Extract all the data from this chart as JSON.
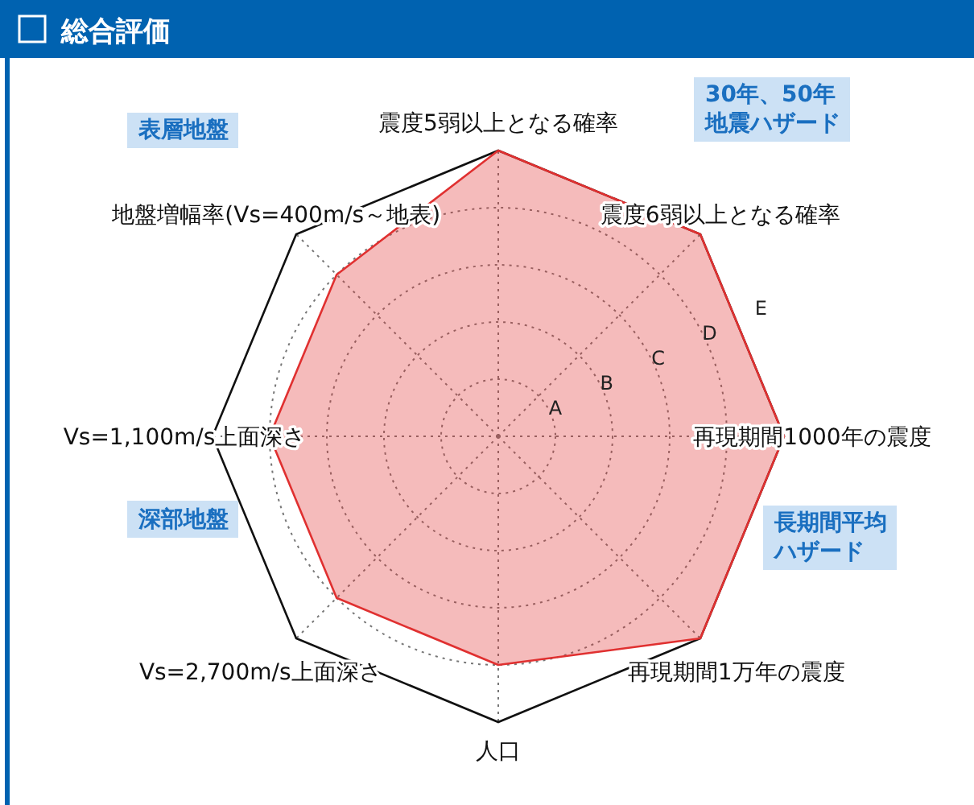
{
  "chart_data": {
    "type": "radar",
    "title": "総合評価",
    "categories": [
      "震度5弱以上となる確率",
      "震度6弱以上となる確率",
      "再現期間1000年の震度",
      "再現期間1万年の震度",
      "人口",
      "Vs=2,700m/s上面深さ",
      "Vs=1,100m/s上面深さ",
      "地盤増幅率(Vs=400m/s～地表)"
    ],
    "series": [
      {
        "color": "#e03030",
        "values": [
          5,
          5,
          5,
          5,
          4,
          4,
          4,
          4
        ]
      }
    ],
    "ylim": [
      0,
      5
    ],
    "yticks": [
      {
        "value": 1,
        "label": "A"
      },
      {
        "value": 2,
        "label": "B"
      },
      {
        "value": 3,
        "label": "C"
      },
      {
        "value": 4,
        "label": "D"
      },
      {
        "value": 5,
        "label": "E"
      }
    ],
    "grid": true,
    "annotations": [
      "表層地盤",
      "30年、50年地震ハザード",
      "深部地盤",
      "長期間平均ハザード"
    ]
  }
}
